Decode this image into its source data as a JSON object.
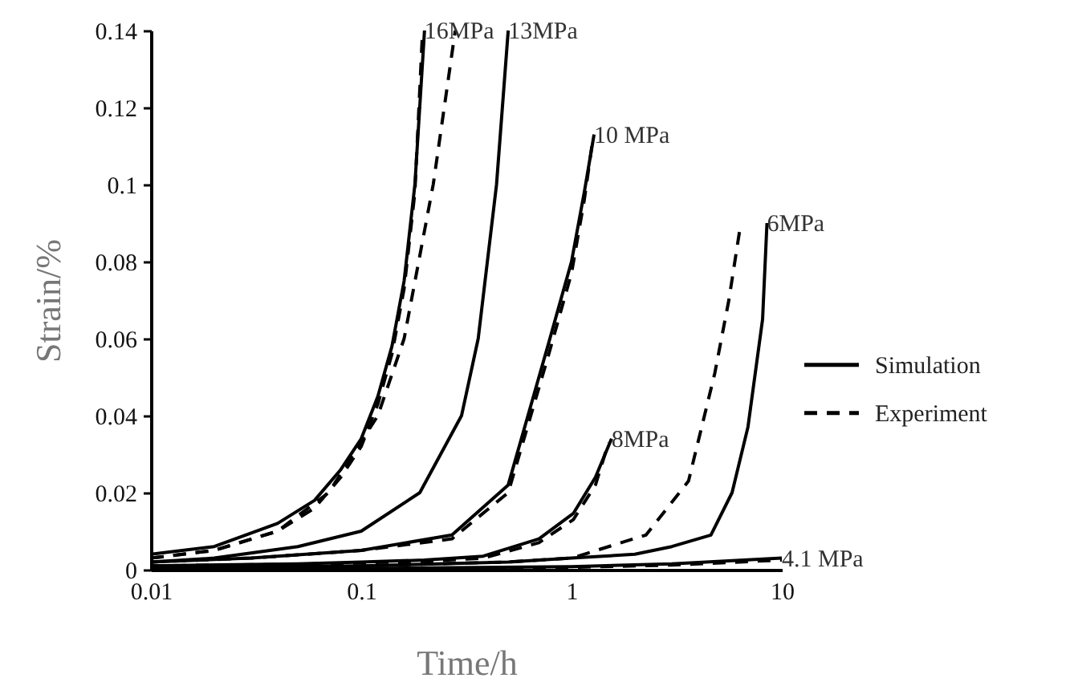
{
  "chart_data": {
    "type": "line",
    "xlabel": "Time/h",
    "ylabel": "Strain/%",
    "log": "x",
    "xlim": [
      0.01,
      10
    ],
    "xticks": [
      0.01,
      0.1,
      1,
      10
    ],
    "ylim": [
      0,
      0.14
    ],
    "yticks": [
      0,
      0.02,
      0.04,
      0.06,
      0.08,
      0.1,
      0.12,
      0.14
    ],
    "grid": false,
    "legend": "right",
    "marker": "none",
    "series": [
      {
        "name": "Simulation",
        "color": "#000000",
        "line_style": "solid",
        "x": [
          0.01,
          0.02,
          0.04,
          0.06,
          0.08,
          0.1,
          0.12,
          0.14,
          0.16,
          0.18,
          0.2
        ],
        "values": [
          0.004,
          0.006,
          0.012,
          0.018,
          0.026,
          0.034,
          0.045,
          0.058,
          0.075,
          0.1,
          0.14
        ]
      },
      {
        "name": "Experiment",
        "color": "#000000",
        "line_style": "dashed",
        "x": [
          0.01,
          0.02,
          0.04,
          0.06,
          0.08,
          0.1,
          0.12,
          0.14,
          0.16,
          0.18,
          0.195
        ],
        "values": [
          0.003,
          0.005,
          0.01,
          0.016,
          0.024,
          0.032,
          0.043,
          0.056,
          0.073,
          0.098,
          0.138
        ]
      },
      {
        "color": "#000000",
        "line_style": "solid",
        "x": [
          0.01,
          0.02,
          0.05,
          0.1,
          0.19,
          0.3,
          0.36,
          0.44,
          0.5
        ],
        "values": [
          0.002,
          0.003,
          0.006,
          0.01,
          0.02,
          0.04,
          0.06,
          0.1,
          0.14
        ]
      },
      {
        "color": "#000000",
        "line_style": "dashed",
        "x": [
          0.01,
          0.02,
          0.04,
          0.07,
          0.12,
          0.16,
          0.22,
          0.28
        ],
        "values": [
          0.003,
          0.005,
          0.01,
          0.02,
          0.04,
          0.06,
          0.1,
          0.14
        ]
      },
      {
        "color": "#000000",
        "line_style": "solid",
        "x": [
          0.01,
          0.03,
          0.1,
          0.27,
          0.5,
          0.78,
          1.0,
          1.15,
          1.28
        ],
        "values": [
          0.002,
          0.003,
          0.005,
          0.009,
          0.022,
          0.059,
          0.08,
          0.098,
          0.113
        ]
      },
      {
        "color": "#000000",
        "line_style": "dashed",
        "x": [
          0.01,
          0.03,
          0.1,
          0.27,
          0.5,
          0.78,
          1.0,
          1.15,
          1.25
        ],
        "values": [
          0.002,
          0.003,
          0.005,
          0.008,
          0.02,
          0.056,
          0.077,
          0.096,
          0.11
        ]
      },
      {
        "color": "#000000",
        "line_style": "solid",
        "x": [
          0.01,
          0.1,
          0.5,
          1,
          2,
          3,
          4.6,
          5.8,
          6.9,
          8.1,
          8.5
        ],
        "values": [
          0.0005,
          0.001,
          0.002,
          0.003,
          0.004,
          0.006,
          0.009,
          0.02,
          0.037,
          0.065,
          0.09
        ]
      },
      {
        "color": "#000000",
        "line_style": "dashed",
        "x": [
          0.01,
          0.1,
          0.5,
          1,
          2.26,
          3.6,
          4.8,
          5.6,
          6.3
        ],
        "values": [
          0.0005,
          0.001,
          0.002,
          0.003,
          0.009,
          0.023,
          0.051,
          0.07,
          0.088
        ]
      },
      {
        "color": "#000000",
        "line_style": "solid",
        "x": [
          0.01,
          0.05,
          0.1,
          0.2,
          0.38,
          0.7,
          1.02,
          1.3,
          1.55
        ],
        "values": [
          0.001,
          0.0015,
          0.002,
          0.0025,
          0.0035,
          0.008,
          0.0146,
          0.024,
          0.034
        ]
      },
      {
        "color": "#000000",
        "line_style": "dashed",
        "x": [
          0.01,
          0.05,
          0.1,
          0.2,
          0.38,
          0.7,
          1.02,
          1.3,
          1.5
        ],
        "values": [
          0.001,
          0.0014,
          0.0018,
          0.0022,
          0.003,
          0.007,
          0.013,
          0.022,
          0.033
        ]
      },
      {
        "color": "#000000",
        "line_style": "solid",
        "x": [
          0.01,
          0.1,
          1,
          3,
          10
        ],
        "values": [
          0,
          0.0003,
          0.0008,
          0.0015,
          0.003
        ]
      },
      {
        "color": "#000000",
        "line_style": "dashed",
        "x": [
          0.01,
          0.1,
          1,
          3,
          10
        ],
        "values": [
          0,
          0.0002,
          0.0006,
          0.0012,
          0.0025
        ]
      }
    ],
    "annotations": [
      "16MPa",
      "13MPa",
      "10 MPa",
      "6MPa",
      "8MPa",
      "4.1 MPa"
    ]
  }
}
